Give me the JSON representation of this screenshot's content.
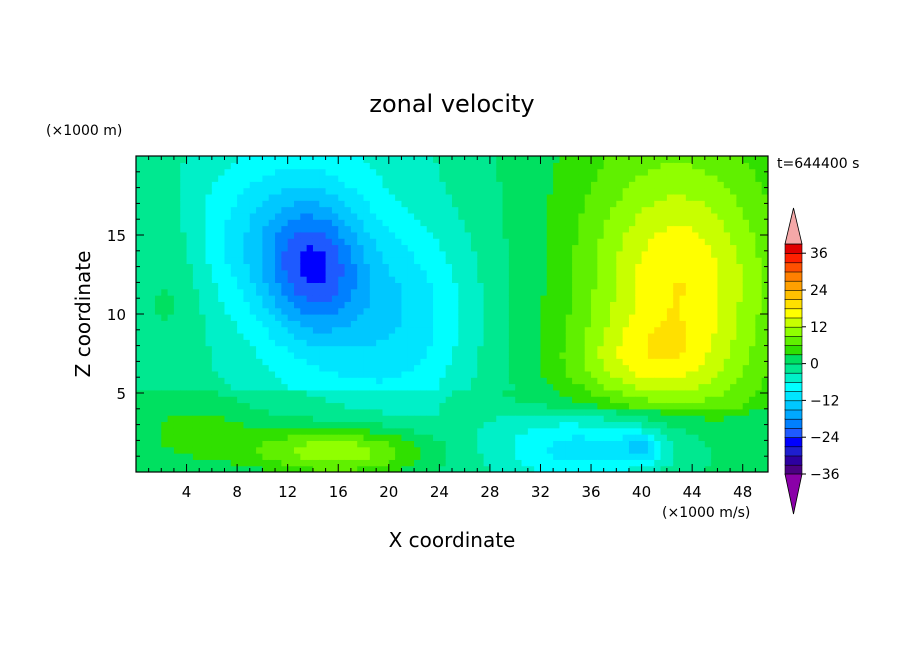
{
  "chart_data": {
    "type": "heatmap",
    "title": "zonal velocity",
    "xlabel": "X coordinate",
    "ylabel": "Z coordinate",
    "x_unit_label": "(×1000 m/s)",
    "y_unit_label": "(×1000 m)",
    "time_label": "t=644400 s",
    "xlim": [
      0,
      50
    ],
    "ylim": [
      0,
      20
    ],
    "x_ticks": [
      4,
      8,
      12,
      16,
      20,
      24,
      28,
      32,
      36,
      40,
      44,
      48
    ],
    "y_ticks": [
      5,
      10,
      15
    ],
    "colorbar": {
      "levels": [
        -42,
        -39,
        -36,
        -33,
        -30,
        -27,
        -24,
        -21,
        -18,
        -15,
        -12,
        -9,
        -6,
        -3,
        0,
        3,
        6,
        9,
        12,
        15,
        18,
        21,
        24,
        27,
        30,
        33,
        36,
        39,
        42
      ],
      "tick_labels": [
        "36",
        "24",
        "12",
        "0",
        "-12",
        "-24",
        "-36"
      ],
      "tick_values": [
        36,
        24,
        12,
        0,
        -12,
        -24,
        -36
      ],
      "colors": [
        "#4b0082",
        "#2d00a0",
        "#1e1ecf",
        "#0000ff",
        "#1e5aff",
        "#0080ff",
        "#00a8ff",
        "#00c8ff",
        "#00e5ff",
        "#00ffff",
        "#00f0c8",
        "#00e890",
        "#00e060",
        "#30e000",
        "#60f000",
        "#90ff00",
        "#c8ff00",
        "#ffff00",
        "#ffe000",
        "#ffc000",
        "#ffa000",
        "#ff8000",
        "#ff5000",
        "#ff2000",
        "#e00000"
      ],
      "under_color": "#8a00a8",
      "over_color": "#f5a8a8"
    },
    "field_features": [
      {
        "x": 14,
        "y": 13,
        "sx": 4.0,
        "sy": 4.5,
        "amp": -16
      },
      {
        "x": 9,
        "y": 15,
        "sx": 6,
        "sy": 5,
        "amp": -6
      },
      {
        "x": 21,
        "y": 10,
        "sx": 6,
        "sy": 6,
        "amp": -8
      },
      {
        "x": 16,
        "y": 1.3,
        "sx": 7,
        "sy": 1.6,
        "amp": 13
      },
      {
        "x": 5,
        "y": 2.5,
        "sx": 5,
        "sy": 2,
        "amp": 5
      },
      {
        "x": 43,
        "y": 12,
        "sx": 7,
        "sy": 7,
        "amp": 13
      },
      {
        "x": 40,
        "y": 7,
        "sx": 6,
        "sy": 2.5,
        "amp": 6
      },
      {
        "x": 36,
        "y": 1.5,
        "sx": 8,
        "sy": 2.5,
        "amp": -12
      },
      {
        "x": 40,
        "y": 1.6,
        "sx": 1.5,
        "sy": 0.9,
        "amp": -8
      },
      {
        "x": 3,
        "y": 12,
        "sx": 2.5,
        "sy": 5,
        "amp": 3
      }
    ]
  }
}
